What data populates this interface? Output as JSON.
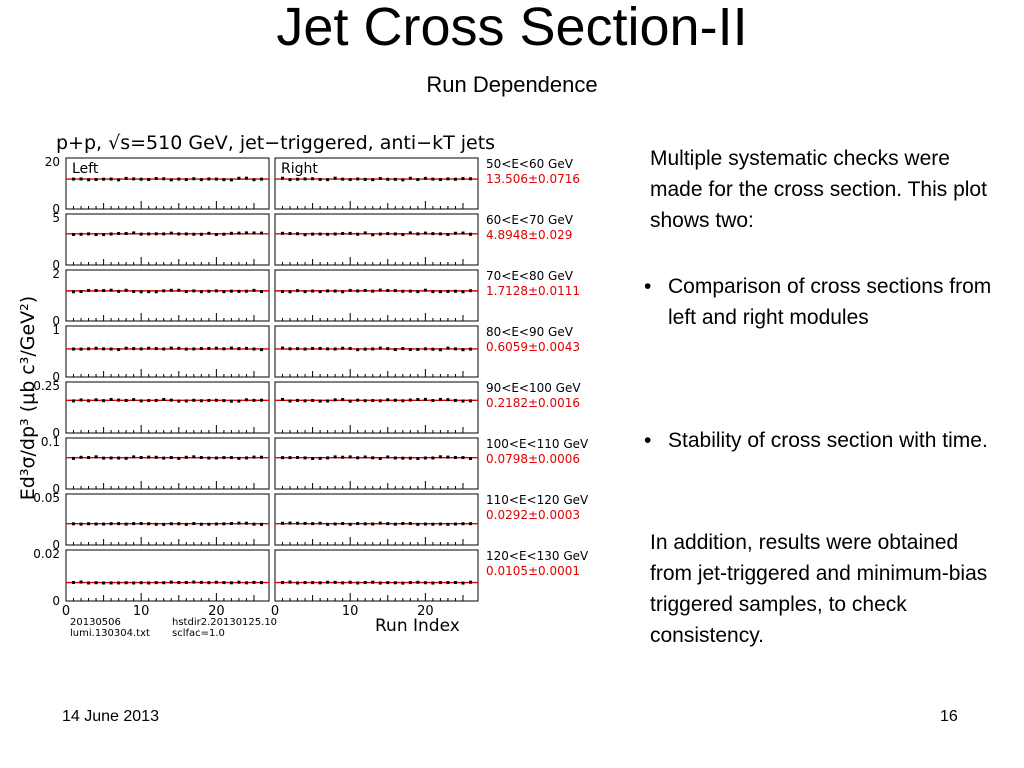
{
  "slide": {
    "title": "Jet Cross Section-II",
    "subtitle": "Run Dependence",
    "intro": "Multiple systematic checks were made for the cross section.  This plot shows two:",
    "bullets": [
      "Comparison of cross sections from left and right modules",
      "Stability of cross section with time."
    ],
    "bullet_symbol": "•",
    "closing": "In addition, results were obtained from jet-triggered and minimum-bias triggered samples, to check consistency.",
    "footer_date": "14 June 2013",
    "page_number": "16"
  },
  "chart_data": {
    "type": "scatter",
    "title": "p+p, √s=510 GeV, jet−triggered, anti−kT jets",
    "ylabel": "Ed³σ/dp³ (μb c³/GeV²)",
    "xlabel": "Run Index",
    "x_ticks": [
      "0",
      "10",
      "20"
    ],
    "xlim": [
      0,
      27
    ],
    "columns": [
      "Left",
      "Right"
    ],
    "colors": {
      "points": "#000000",
      "fit": "#e00000",
      "fit_label": "#e00000",
      "frame": "#000000"
    },
    "footnotes": [
      "20130506",
      "hstdir2.20130125.10",
      "lumi.130304.txt",
      "sclfac=1.0"
    ],
    "panels": [
      {
        "bin": "50<E<60 GeV",
        "fit": "13.506±0.0716",
        "fit_value": 13.506,
        "ylim": [
          0,
          23
        ],
        "yticks": [
          "20",
          "0"
        ]
      },
      {
        "bin": "60<E<70 GeV",
        "fit": "4.8948±0.029",
        "fit_value": 4.8948,
        "ylim": [
          0,
          8
        ],
        "yticks": [
          "5",
          "0"
        ]
      },
      {
        "bin": "70<E<80 GeV",
        "fit": "1.7128±0.0111",
        "fit_value": 1.7128,
        "ylim": [
          0,
          2.9
        ],
        "yticks": [
          "2",
          "0"
        ]
      },
      {
        "bin": "80<E<90 GeV",
        "fit": "0.6059±0.0043",
        "fit_value": 0.6059,
        "ylim": [
          0,
          1.1
        ],
        "yticks": [
          "1",
          "0"
        ]
      },
      {
        "bin": "90<E<100 GeV",
        "fit": "0.2182±0.0016",
        "fit_value": 0.2182,
        "ylim": [
          0,
          0.34
        ],
        "yticks": [
          "0.25",
          "0"
        ]
      },
      {
        "bin": "100<E<110 GeV",
        "fit": "0.0798±0.0006",
        "fit_value": 0.0798,
        "ylim": [
          0,
          0.13
        ],
        "yticks": [
          "0.1",
          "0"
        ]
      },
      {
        "bin": "110<E<120 GeV",
        "fit": "0.0292±0.0003",
        "fit_value": 0.0292,
        "ylim": [
          0,
          0.07
        ],
        "yticks": [
          "0.05",
          "0"
        ]
      },
      {
        "bin": "120<E<130 GeV",
        "fit": "0.0105±0.0001",
        "fit_value": 0.0105,
        "ylim": [
          0,
          0.029
        ],
        "yticks": [
          "0.02",
          "0"
        ]
      }
    ]
  }
}
